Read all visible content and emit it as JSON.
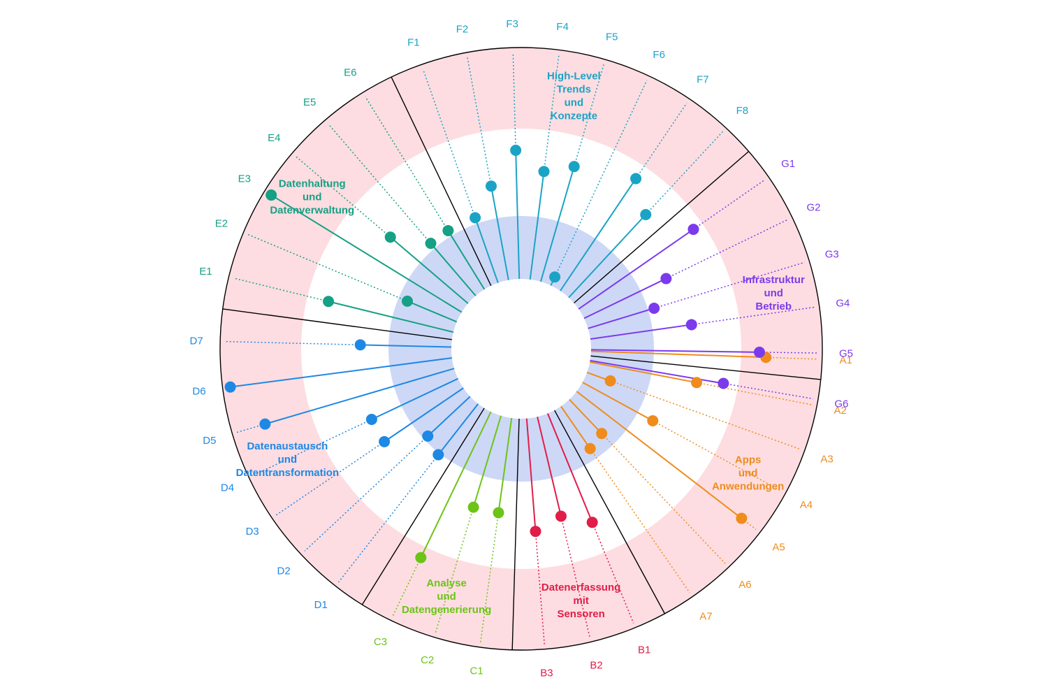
{
  "diagram": {
    "type": "radial-lollipop",
    "rings": {
      "outer_band_color": "#fddde1",
      "middle_color": "#ffffff",
      "inner_band_color": "#cdd8f6",
      "divider_color": "#000000"
    },
    "segments": [
      {
        "id": "A",
        "title_lines": [
          "Apps",
          "und",
          "Anwendungen"
        ],
        "color": "#ef8c1c",
        "items": [
          {
            "label": "A1",
            "value": 0.78
          },
          {
            "label": "A2",
            "value": 0.48
          },
          {
            "label": "A3",
            "value": 0.1
          },
          {
            "label": "A4",
            "value": 0.35
          },
          {
            "label": "A5",
            "value": 0.93
          },
          {
            "label": "A6",
            "value": 0.2
          },
          {
            "label": "A7",
            "value": 0.22
          }
        ]
      },
      {
        "id": "B",
        "title_lines": [
          "Datenerfassung",
          "mit",
          "Sensoren"
        ],
        "color": "#e11d48",
        "items": [
          {
            "label": "B1",
            "value": 0.52
          },
          {
            "label": "B2",
            "value": 0.45
          },
          {
            "label": "B3",
            "value": 0.5
          }
        ]
      },
      {
        "id": "C",
        "title_lines": [
          "Analyse",
          "und",
          "Datengenerierung"
        ],
        "color": "#6cc417",
        "items": [
          {
            "label": "C1",
            "value": 0.42
          },
          {
            "label": "C2",
            "value": 0.42
          },
          {
            "label": "C3",
            "value": 0.72
          }
        ]
      },
      {
        "id": "D",
        "title_lines": [
          "Datenaustausch",
          "und",
          "Datentransformation"
        ],
        "color": "#1e88e5",
        "items": [
          {
            "label": "D1",
            "value": 0.28
          },
          {
            "label": "D2",
            "value": 0.25
          },
          {
            "label": "D3",
            "value": 0.42
          },
          {
            "label": "D4",
            "value": 0.42
          },
          {
            "label": "D5",
            "value": 0.88
          },
          {
            "label": "D6",
            "value": 1.0
          },
          {
            "label": "D7",
            "value": 0.4
          }
        ]
      },
      {
        "id": "E",
        "title_lines": [
          "Datenhaltung",
          "und",
          "Datenverwaltung"
        ],
        "color": "#16a085",
        "items": [
          {
            "label": "E1",
            "value": 0.57
          },
          {
            "label": "E2",
            "value": 0.23
          },
          {
            "label": "E3",
            "value": 1.0
          },
          {
            "label": "E4",
            "value": 0.45
          },
          {
            "label": "E5",
            "value": 0.3
          },
          {
            "label": "E6",
            "value": 0.3
          }
        ]
      },
      {
        "id": "F",
        "title_lines": [
          "High-Level",
          "Trends",
          "und",
          "Konzepte"
        ],
        "color": "#1ba3c6",
        "items": [
          {
            "label": "F1",
            "value": 0.3
          },
          {
            "label": "F2",
            "value": 0.42
          },
          {
            "label": "F3",
            "value": 0.57
          },
          {
            "label": "F4",
            "value": 0.48
          },
          {
            "label": "F5",
            "value": 0.53
          },
          {
            "label": "F6",
            "value": 0.03
          },
          {
            "label": "F7",
            "value": 0.6
          },
          {
            "label": "F8",
            "value": 0.5
          }
        ]
      },
      {
        "id": "G",
        "title_lines": [
          "Infrastruktur",
          "und",
          "Betrieb"
        ],
        "color": "#7c3aed",
        "items": [
          {
            "label": "G1",
            "value": 0.62
          },
          {
            "label": "G2",
            "value": 0.4
          },
          {
            "label": "G3",
            "value": 0.3
          },
          {
            "label": "G4",
            "value": 0.45
          },
          {
            "label": "G5",
            "value": 0.75
          },
          {
            "label": "G6",
            "value": 0.6
          }
        ]
      }
    ]
  }
}
